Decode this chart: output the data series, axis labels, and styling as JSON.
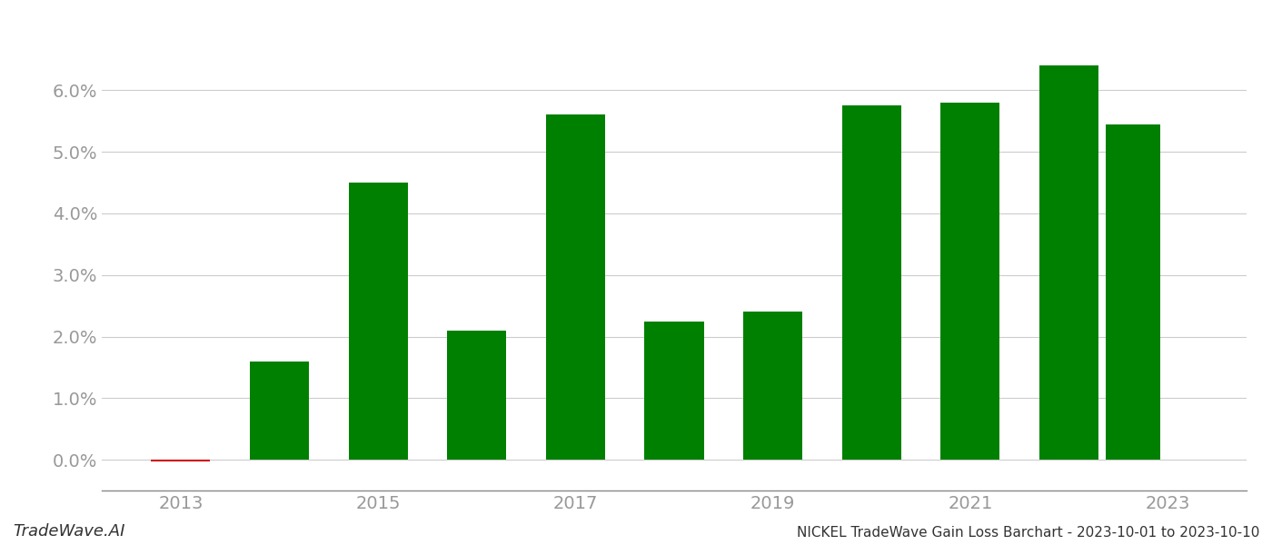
{
  "years": [
    2013,
    2014,
    2015,
    2016,
    2017,
    2018,
    2019,
    2020,
    2021,
    2022
  ],
  "values": [
    -0.0003,
    0.016,
    0.045,
    0.021,
    0.056,
    0.0225,
    0.024,
    0.0575,
    0.058,
    0.064
  ],
  "extra_bar_year": 2022.65,
  "extra_bar_value": 0.0545,
  "bar_colors_positive": "#008000",
  "bar_colors_negative": "#cc0000",
  "title": "NICKEL TradeWave Gain Loss Barchart - 2023-10-01 to 2023-10-10",
  "watermark": "TradeWave.AI",
  "ylim_min": -0.005,
  "ylim_max": 0.072,
  "xlim_min": 2012.2,
  "xlim_max": 2023.8,
  "background_color": "#ffffff",
  "grid_color": "#cccccc",
  "tick_label_color": "#999999",
  "bar_width": 0.6,
  "extra_bar_width": 0.55,
  "title_fontsize": 11,
  "watermark_fontsize": 13,
  "tick_fontsize": 14,
  "x_ticks": [
    2013,
    2015,
    2017,
    2019,
    2021,
    2023
  ],
  "y_ticks": [
    0.0,
    0.01,
    0.02,
    0.03,
    0.04,
    0.05,
    0.06
  ]
}
